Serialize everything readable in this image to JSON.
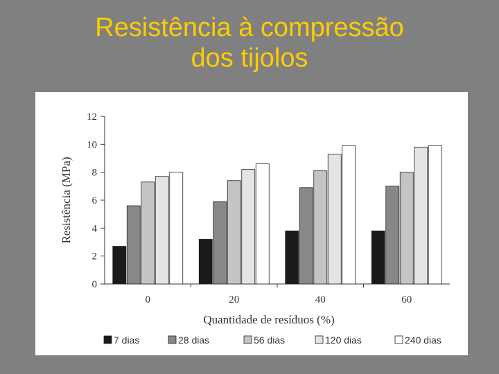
{
  "slide": {
    "title_line1": "Resistência à compressão",
    "title_line2": "dos tijolos"
  },
  "colors": {
    "background": "#808080",
    "title": "#FFCC00"
  },
  "chart_data": {
    "type": "bar",
    "categories": [
      "0",
      "20",
      "40",
      "60"
    ],
    "xlabel": "Quantidade de resíduos (%)",
    "ylabel": "Resistência (MPa)",
    "ylim": [
      0,
      12
    ],
    "yticks": [
      0,
      2,
      4,
      6,
      8,
      10,
      12
    ],
    "grid": false,
    "legend_position": "bottom",
    "series": [
      {
        "name": "7 dias",
        "values": [
          2.7,
          3.2,
          3.8,
          3.8
        ],
        "color": "#1a1a1a"
      },
      {
        "name": "28 dias",
        "values": [
          5.6,
          5.9,
          6.9,
          7.0
        ],
        "color": "#888888"
      },
      {
        "name": "56 dias",
        "values": [
          7.3,
          7.4,
          8.1,
          8.0
        ],
        "color": "#c4c4c4"
      },
      {
        "name": "120 dias",
        "values": [
          7.7,
          8.2,
          9.3,
          9.8
        ],
        "color": "#e4e4e4"
      },
      {
        "name": "240 dias",
        "values": [
          8.0,
          8.6,
          9.9,
          9.9
        ],
        "color": "#ffffff"
      }
    ]
  }
}
